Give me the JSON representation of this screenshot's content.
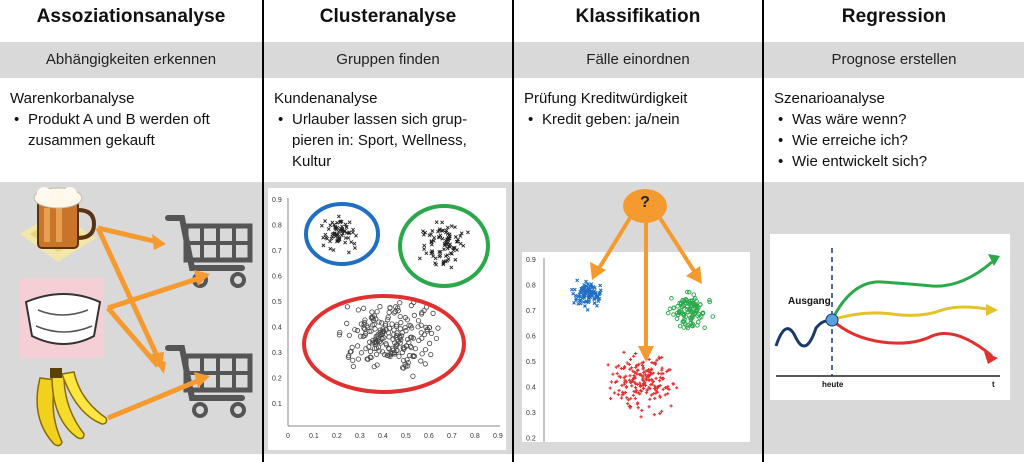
{
  "columns": [
    {
      "title": "Assoziationsanalyse",
      "subtitle": "Abhängigkeiten erkennen",
      "heading": "Warenkorbanalyse",
      "bullets": [
        "Produkt A und B werden oft zusammen gekauft"
      ]
    },
    {
      "title": "Clusteranalyse",
      "subtitle": "Gruppen finden",
      "heading": "Kundenanalyse",
      "bullets": [
        "Urlauber lassen sich grup-pieren in: Sport, Wellness, Kultur"
      ]
    },
    {
      "title": "Klassifikation",
      "subtitle": "Fälle einordnen",
      "heading": "Prüfung Kreditwürdigkeit",
      "bullets": [
        "Kredit geben: ja/nein"
      ]
    },
    {
      "title": "Regression",
      "subtitle": "Prognose erstellen",
      "heading": "Szenarioanalyse",
      "bullets": [
        "Was wäre wenn?",
        "Wie erreiche ich?",
        "Wie entwickelt sich?"
      ]
    }
  ],
  "cluster_plot": {
    "x_ticks": [
      "0",
      "0.1",
      "0.2",
      "0.3",
      "0.4",
      "0.5",
      "0.6",
      "0.7",
      "0.8",
      "0.9"
    ],
    "y_ticks": [
      "0.9",
      "0.8",
      "0.7",
      "0.6",
      "0.5",
      "0.4",
      "0.3",
      "0.2",
      "0.1"
    ]
  },
  "class_plot": {
    "question": "?",
    "y_ticks": [
      "0.9",
      "0.8",
      "0.7",
      "0.6",
      "0.5",
      "0.4",
      "0.3",
      "0.2"
    ]
  },
  "regression_plot": {
    "start_label": "Ausgang",
    "x_now_label": "heute",
    "x_end_label": "t"
  },
  "colors": {
    "arrow": "#f59a2e",
    "green": "#2aa84a",
    "blue": "#1f6fc4",
    "red": "#e03030",
    "yellow": "#e6c22a",
    "gray_band": "#d9d9d9"
  }
}
